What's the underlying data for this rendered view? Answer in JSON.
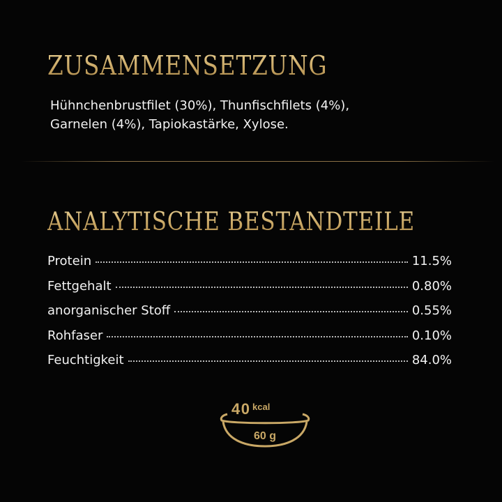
{
  "composition": {
    "title": "ZUSAMMENSETZUNG",
    "lines": [
      "Hühnchenbrustfilet (30%), Thunfischfilets (4%),",
      "Garnelen (4%), Tapiokastärke, Xylose."
    ]
  },
  "analysis": {
    "title": "ANALYTISCHE BESTANDTEILE",
    "rows": [
      {
        "label": "Protein",
        "value": "11.5%"
      },
      {
        "label": "Fettgehalt",
        "value": "0.80%"
      },
      {
        "label": "anorganischer Stoff",
        "value": "0.55%"
      },
      {
        "label": "Rohfaser",
        "value": "0.10%"
      },
      {
        "label": "Feuchtigkeit",
        "value": "84.0%"
      }
    ]
  },
  "serving": {
    "energy": "40",
    "energy_unit": "kcal",
    "weight": "60 g",
    "icon": "bowl-icon"
  },
  "colors": {
    "background": "#050505",
    "gold": "#c9a866",
    "text": "#f2f2f2"
  }
}
